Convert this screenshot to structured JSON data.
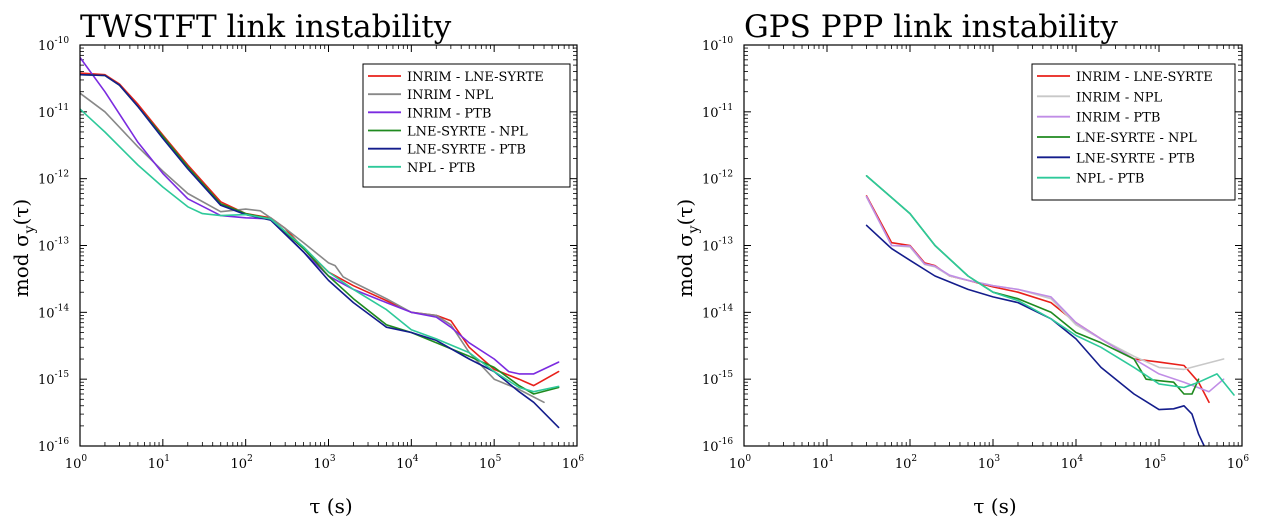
{
  "chart_data": [
    {
      "type": "line",
      "title": "TWSTFT link instability",
      "xlabel": "τ (s)",
      "ylabel": "mod σy(τ)",
      "xscale": "log",
      "yscale": "log",
      "xlim": [
        1,
        1000000
      ],
      "ylim": [
        1e-16,
        1e-10
      ],
      "grid": false,
      "legend": "top-right",
      "x_tick_labels": [
        "10^0",
        "10^1",
        "10^2",
        "10^3",
        "10^4",
        "10^5",
        "10^6"
      ],
      "y_tick_labels": [
        "10^-16",
        "10^-15",
        "10^-14",
        "10^-13",
        "10^-12",
        "10^-11",
        "10^-10"
      ],
      "series": [
        {
          "name": "INRIM - LNE-SYRTE",
          "color": "#e8201a",
          "x": [
            1,
            2,
            3,
            5,
            10,
            20,
            50,
            100,
            200,
            300,
            500,
            1000,
            2000,
            5000,
            10000,
            20000,
            30000,
            50000,
            100000,
            200000,
            300000,
            600000
          ],
          "y": [
            3.8e-11,
            3.6e-11,
            2.6e-11,
            1.3e-11,
            4.5e-12,
            1.6e-12,
            4.5e-13,
            3e-13,
            2.6e-13,
            1.8e-13,
            9e-14,
            4e-14,
            2.5e-14,
            1.5e-14,
            1e-14,
            9e-15,
            7.5e-15,
            3e-15,
            1.4e-15,
            1e-15,
            8e-16,
            1.3e-15
          ]
        },
        {
          "name": "INRIM - NPL",
          "color": "#888888",
          "x": [
            1,
            2,
            5,
            10,
            20,
            50,
            100,
            150,
            200,
            300,
            500,
            1000,
            1200,
            1500,
            2000,
            5000,
            10000,
            20000,
            30000,
            50000,
            100000,
            200000,
            400000
          ],
          "y": [
            1.9e-11,
            1e-11,
            3e-12,
            1.3e-12,
            6e-13,
            3.2e-13,
            3.5e-13,
            3.3e-13,
            2.6e-13,
            1.8e-13,
            1.1e-13,
            5.5e-14,
            5e-14,
            3.4e-14,
            2.8e-14,
            1.6e-14,
            1e-14,
            9e-15,
            6.5e-15,
            2.5e-15,
            1e-15,
            7e-16,
            4.5e-16
          ]
        },
        {
          "name": "INRIM - PTB",
          "color": "#7b2be0",
          "x": [
            1,
            2,
            5,
            10,
            20,
            50,
            100,
            200,
            500,
            1000,
            2000,
            5000,
            10000,
            20000,
            30000,
            50000,
            100000,
            150000,
            200000,
            300000,
            600000
          ],
          "y": [
            6.5e-11,
            2e-11,
            3.5e-12,
            1.2e-12,
            5e-13,
            2.8e-13,
            2.6e-13,
            2.5e-13,
            8e-14,
            3.5e-14,
            2.2e-14,
            1.4e-14,
            1e-14,
            8.5e-15,
            6e-15,
            3.5e-15,
            2e-15,
            1.3e-15,
            1.2e-15,
            1.2e-15,
            1.8e-15
          ]
        },
        {
          "name": "LNE-SYRTE - NPL",
          "color": "#1f8a1f",
          "x": [
            1,
            2,
            3,
            5,
            10,
            20,
            50,
            100,
            200,
            500,
            1000,
            2000,
            5000,
            10000,
            20000,
            50000,
            100000,
            200000,
            300000,
            600000
          ],
          "y": [
            3.6e-11,
            3.5e-11,
            2.5e-11,
            1.2e-11,
            4.3e-12,
            1.5e-12,
            4.2e-13,
            3e-13,
            2.5e-13,
            9e-14,
            3.5e-14,
            1.6e-14,
            6.5e-15,
            5e-15,
            3.5e-15,
            2.2e-15,
            1.5e-15,
            8e-16,
            6e-16,
            7.5e-16
          ]
        },
        {
          "name": "LNE-SYRTE - PTB",
          "color": "#141d8c",
          "x": [
            1,
            2,
            3,
            5,
            10,
            20,
            50,
            100,
            200,
            500,
            1000,
            2000,
            5000,
            10000,
            20000,
            50000,
            100000,
            200000,
            300000,
            600000
          ],
          "y": [
            3.6e-11,
            3.5e-11,
            2.5e-11,
            1.2e-11,
            4e-12,
            1.4e-12,
            4e-13,
            2.9e-13,
            2.4e-13,
            8e-14,
            3e-14,
            1.4e-14,
            6e-15,
            5e-15,
            3.8e-15,
            2e-15,
            1.3e-15,
            6.5e-16,
            4.5e-16,
            1.9e-16
          ]
        },
        {
          "name": "NPL - PTB",
          "color": "#2ec99a",
          "x": [
            1,
            2,
            5,
            10,
            20,
            30,
            50,
            100,
            200,
            500,
            1000,
            2000,
            5000,
            10000,
            20000,
            50000,
            100000,
            200000,
            300000,
            600000
          ],
          "y": [
            1.1e-11,
            5e-12,
            1.6e-12,
            7.5e-13,
            3.8e-13,
            3e-13,
            2.8e-13,
            2.9e-13,
            2.5e-13,
            9.5e-14,
            4e-14,
            2.2e-14,
            1.1e-14,
            5.5e-15,
            4e-15,
            2.5e-15,
            1.3e-15,
            7.5e-16,
            6.5e-16,
            7.8e-16
          ]
        }
      ]
    },
    {
      "type": "line",
      "title": "GPS PPP link instability",
      "xlabel": "τ (s)",
      "ylabel": "mod σy(τ)",
      "xscale": "log",
      "yscale": "log",
      "xlim": [
        1,
        1000000
      ],
      "ylim": [
        1e-16,
        1e-10
      ],
      "grid": false,
      "legend": "top-right",
      "x_tick_labels": [
        "10^0",
        "10^1",
        "10^2",
        "10^3",
        "10^4",
        "10^5",
        "10^6"
      ],
      "y_tick_labels": [
        "10^-16",
        "10^-15",
        "10^-14",
        "10^-13",
        "10^-12",
        "10^-11",
        "10^-10"
      ],
      "series": [
        {
          "name": "INRIM - LNE-SYRTE",
          "color": "#e8201a",
          "x": [
            30,
            60,
            100,
            150,
            200,
            300,
            500,
            1000,
            2000,
            5000,
            10000,
            20000,
            50000,
            100000,
            200000,
            300000,
            400000
          ],
          "y": [
            5.5e-13,
            1.1e-13,
            1e-13,
            5.5e-14,
            5e-14,
            3.5e-14,
            3e-14,
            2.4e-14,
            2e-14,
            1.4e-14,
            7e-15,
            4e-15,
            2e-15,
            1.8e-15,
            1.6e-15,
            9e-16,
            4.5e-16
          ]
        },
        {
          "name": "INRIM - NPL",
          "color": "#c8c8c8",
          "x": [
            30,
            60,
            100,
            150,
            200,
            300,
            500,
            1000,
            2000,
            5000,
            10000,
            20000,
            50000,
            100000,
            200000,
            300000,
            600000
          ],
          "y": [
            5.3e-13,
            1e-13,
            9.5e-14,
            5.2e-14,
            4.8e-14,
            3.5e-14,
            3e-14,
            2.5e-14,
            2.2e-14,
            1.6e-14,
            6.5e-15,
            4e-15,
            2.2e-15,
            1.5e-15,
            1.4e-15,
            1.6e-15,
            2e-15
          ]
        },
        {
          "name": "INRIM - PTB",
          "color": "#c08de6",
          "x": [
            30,
            60,
            100,
            150,
            200,
            300,
            500,
            1000,
            2000,
            5000,
            10000,
            20000,
            50000,
            100000,
            200000,
            400000,
            600000
          ],
          "y": [
            5.4e-13,
            1e-13,
            9.8e-14,
            5.3e-14,
            4.9e-14,
            3.6e-14,
            3e-14,
            2.5e-14,
            2.2e-14,
            1.7e-14,
            7e-15,
            4e-15,
            2e-15,
            1.2e-15,
            9e-16,
            6.5e-16,
            1e-15
          ]
        },
        {
          "name": "LNE-SYRTE - NPL",
          "color": "#1f8a1f",
          "x": [
            30,
            100,
            200,
            500,
            1000,
            2000,
            5000,
            10000,
            20000,
            50000,
            70000,
            100000,
            150000,
            200000,
            250000,
            300000
          ],
          "y": [
            1.1e-12,
            3e-13,
            1e-13,
            3.5e-14,
            2e-14,
            1.6e-14,
            1e-14,
            5e-15,
            3.5e-15,
            2e-15,
            1e-15,
            9.5e-16,
            9e-16,
            6e-16,
            6e-16,
            1e-15
          ]
        },
        {
          "name": "LNE-SYRTE - PTB",
          "color": "#141d8c",
          "x": [
            30,
            60,
            100,
            200,
            500,
            1000,
            2000,
            5000,
            10000,
            20000,
            50000,
            100000,
            150000,
            200000,
            250000,
            300000,
            350000,
            400000
          ],
          "y": [
            2e-13,
            9e-14,
            6e-14,
            3.5e-14,
            2.2e-14,
            1.7e-14,
            1.4e-14,
            8e-15,
            4e-15,
            1.5e-15,
            6e-16,
            3.5e-16,
            3.6e-16,
            4e-16,
            3e-16,
            1.5e-16,
            1e-16,
            8e-17
          ]
        },
        {
          "name": "NPL - PTB",
          "color": "#2ec99a",
          "x": [
            30,
            100,
            200,
            500,
            1000,
            2000,
            5000,
            10000,
            20000,
            50000,
            100000,
            200000,
            300000,
            500000,
            800000
          ],
          "y": [
            1.1e-12,
            3e-13,
            1e-13,
            3.5e-14,
            2e-14,
            1.5e-14,
            8e-15,
            4.5e-15,
            3e-15,
            1.5e-15,
            8.5e-16,
            7.5e-16,
            9e-16,
            1.2e-15,
            5.8e-16
          ]
        }
      ]
    }
  ]
}
